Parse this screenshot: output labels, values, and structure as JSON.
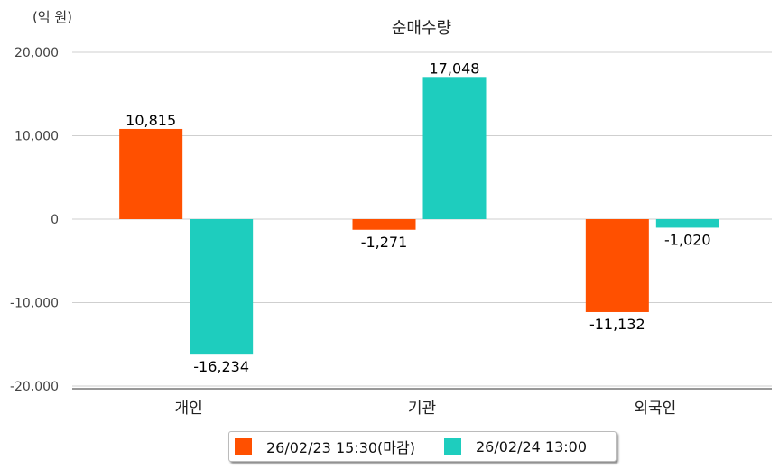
{
  "chart_data": {
    "type": "bar",
    "title": "순매수량",
    "unit_label": "(억 원)",
    "categories": [
      "개인",
      "기관",
      "외국인"
    ],
    "series": [
      {
        "name": "26/02/23 15:30(마감)",
        "color": "#FF5000",
        "values": [
          10815,
          -1271,
          -11132
        ],
        "labels": [
          "10,815",
          "-1,271",
          "-11,132"
        ]
      },
      {
        "name": "26/02/24 13:00",
        "color": "#1ECDBE",
        "values": [
          -16234,
          17048,
          -1020
        ],
        "labels": [
          "-16,234",
          "17,048",
          "-1,020"
        ]
      }
    ],
    "ylim": [
      -20000,
      20000
    ],
    "yticks": [
      20000,
      10000,
      0,
      -10000,
      -20000
    ],
    "ytick_labels": [
      "20,000",
      "10,000",
      "0",
      "-10,000",
      "-20,000"
    ],
    "grid": true,
    "legend": "bottom-center"
  }
}
